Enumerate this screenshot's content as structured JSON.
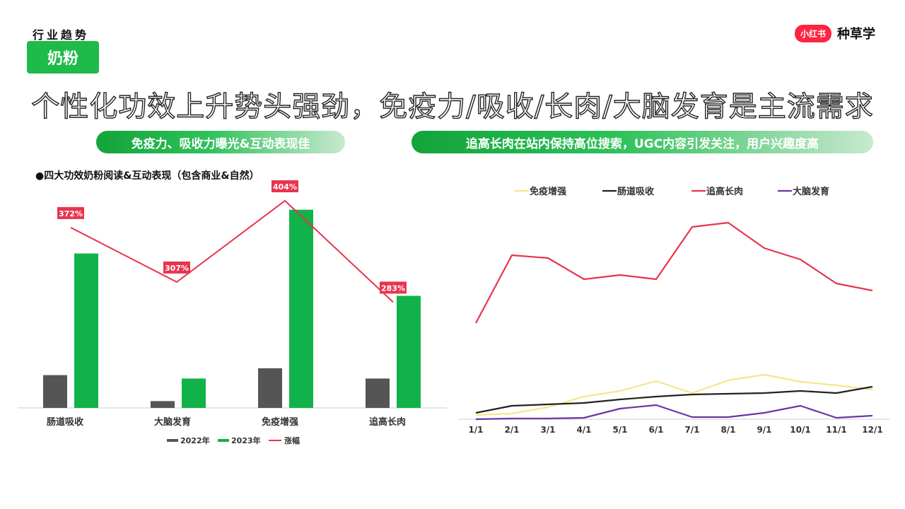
{
  "header": {
    "section_label": "行业趋势",
    "category_tag": "奶粉",
    "brand_logo_text": "小红书",
    "brand_text": "种草学",
    "headline": "个性化功效上升势头强劲，免疫力/吸收/长肉/大脑发育是主流需求"
  },
  "pills": {
    "left": "免疫力、吸收力曝光&互动表现佳",
    "right": "追高长肉在站内保持高位搜索，UGC内容引发关注，用户兴趣度高"
  },
  "colors": {
    "brand_green": "#1fbb4a",
    "brand_red": "#ff2442",
    "bar_2022": "#555555",
    "bar_2023": "#12b24a",
    "growth_line": "#e8344e",
    "series_immunity": "#f5e68c",
    "series_digestion": "#222222",
    "series_growth": "#e8344e",
    "series_brain": "#6f34a4"
  },
  "chart_data": [
    {
      "type": "bar",
      "title": "●四大功效奶粉阅读&互动表现（包含商业&自然）",
      "categories": [
        "肠道吸收",
        "大脑发育",
        "免疫增强",
        "追高长肉"
      ],
      "series": [
        {
          "name": "2022年",
          "values": [
            48,
            10,
            58,
            43
          ]
        },
        {
          "name": "2023年",
          "values": [
            226,
            43,
            290,
            164
          ]
        }
      ],
      "line_series": {
        "name": "涨幅",
        "values": [
          372,
          307,
          404,
          283
        ],
        "labels": [
          "372%",
          "307%",
          "404%",
          "283%"
        ]
      },
      "legend": [
        "2022年",
        "2023年",
        "涨幅"
      ],
      "legend_position": "bottom",
      "ylim": [
        0,
        300
      ],
      "line_ylim": [
        150,
        420
      ],
      "grid": false
    },
    {
      "type": "line",
      "title": "",
      "x": [
        "1/1",
        "2/1",
        "3/1",
        "4/1",
        "5/1",
        "6/1",
        "7/1",
        "8/1",
        "9/1",
        "10/1",
        "11/1",
        "12/1"
      ],
      "series": [
        {
          "name": "免疫增强",
          "values": [
            6,
            8,
            17,
            32,
            40,
            54,
            37,
            55,
            63,
            53,
            48,
            42
          ]
        },
        {
          "name": "肠道吸收",
          "values": [
            9,
            19,
            21,
            23,
            28,
            32,
            35,
            36,
            37,
            40,
            37,
            46
          ]
        },
        {
          "name": "追高长肉",
          "values": [
            136,
            232,
            228,
            198,
            204,
            198,
            272,
            278,
            242,
            226,
            192,
            182
          ]
        },
        {
          "name": "大脑发育",
          "values": [
            0,
            1,
            1,
            2,
            15,
            20,
            3,
            3,
            9,
            19,
            2,
            5
          ]
        }
      ],
      "legend_position": "top",
      "ylim": [
        0,
        300
      ],
      "grid": false
    }
  ]
}
